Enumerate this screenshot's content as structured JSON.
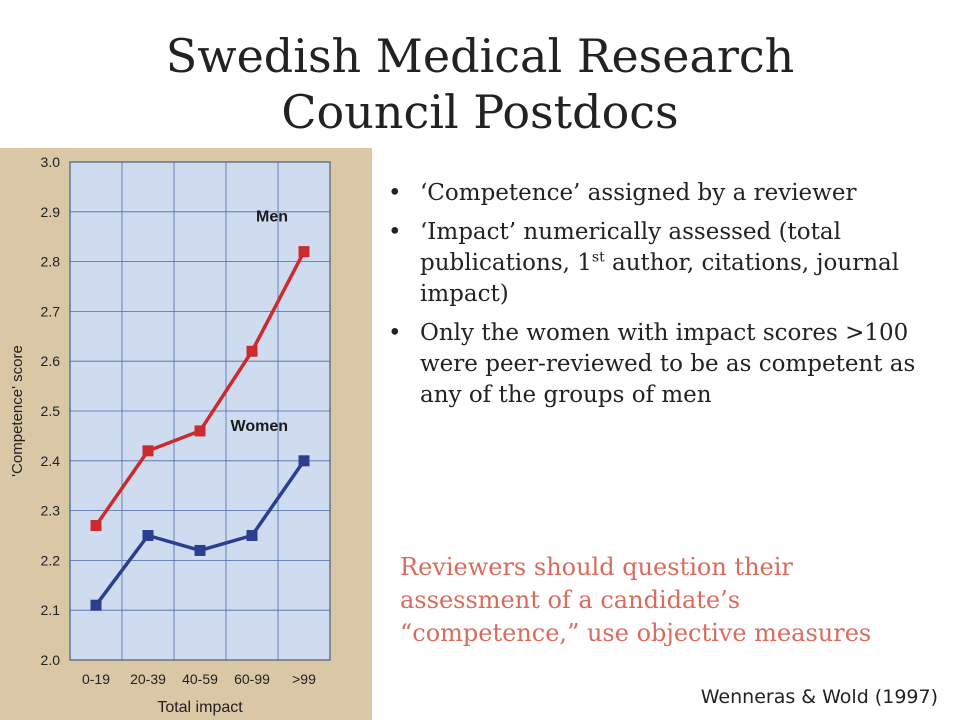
{
  "slide": {
    "title_lines": [
      "Swedish Medical Research",
      "Council Postdocs"
    ],
    "bullets": [
      {
        "text": "‘Competence’ assigned by a reviewer"
      },
      {
        "before": "‘Impact’ numerically assessed (total publications, 1",
        "sup": "st",
        "after": " author, citations, journal impact)"
      },
      {
        "text": "Only the women with impact scores >100 were peer-reviewed to be as competent as any of the groups of men"
      }
    ],
    "callout": "Reviewers should question their assessment of a candidate’s “competence,” use objective measures",
    "citation": "Wenneras & Wold (1997)"
  },
  "chart_data": {
    "type": "line",
    "categories": [
      "0-19",
      "20-39",
      "40-59",
      "60-99",
      ">99"
    ],
    "series": [
      {
        "name": "Men",
        "values": [
          2.27,
          2.42,
          2.46,
          2.62,
          2.82
        ],
        "color": "#cc2a2e"
      },
      {
        "name": "Women",
        "values": [
          2.11,
          2.25,
          2.22,
          2.25,
          2.4
        ],
        "color": "#2a3f8f"
      }
    ],
    "title": "",
    "xlabel": "Total impact",
    "ylabel": "'Competence' score",
    "ylim": [
      2.0,
      3.0
    ],
    "yticks": [
      "2.0",
      "2.1",
      "2.2",
      "2.3",
      "2.4",
      "2.5",
      "2.6",
      "2.7",
      "2.8",
      "2.9",
      "3.0"
    ],
    "grid": true,
    "plot_background": "#cfdcf0"
  }
}
